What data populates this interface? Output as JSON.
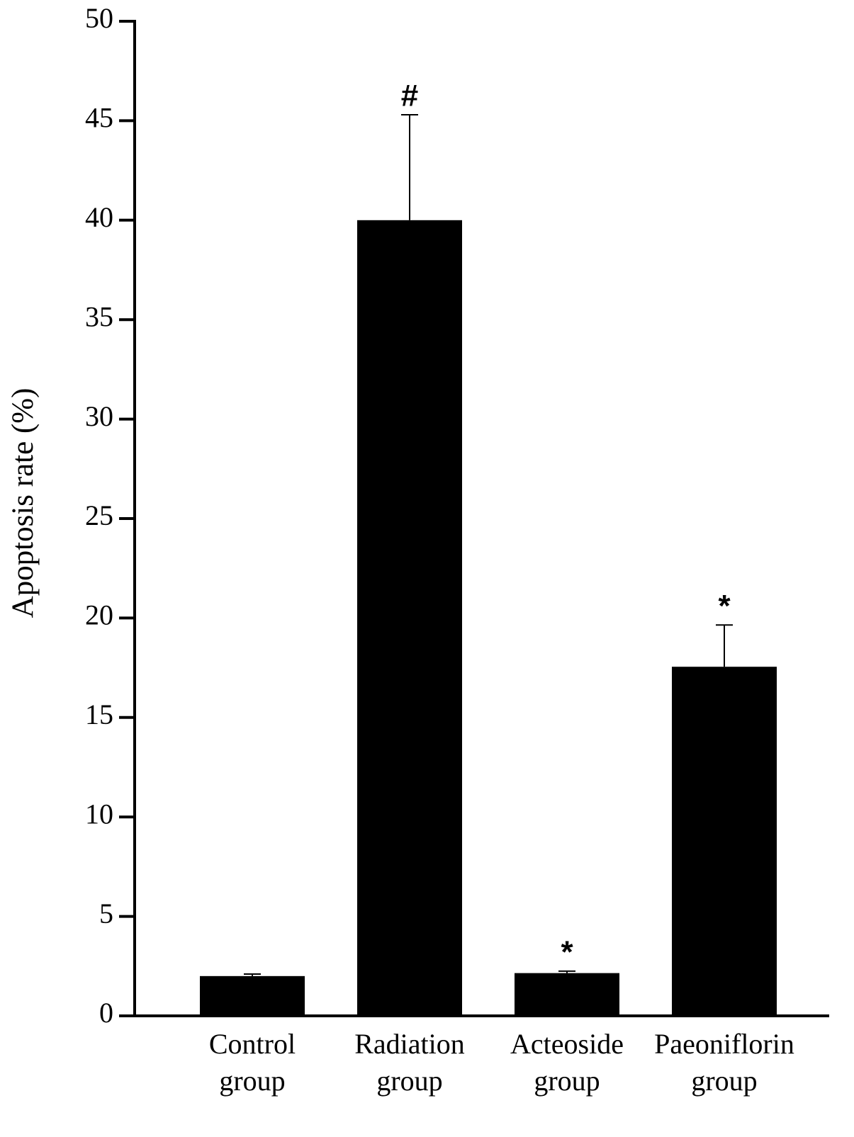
{
  "chart_data": {
    "type": "bar",
    "y_label": "Apoptosis rate (%)",
    "categories": [
      "Control group",
      "Radiation group",
      "Acteoside group",
      "Paeoniflorin group"
    ],
    "values": [
      2.0,
      40.0,
      2.15,
      17.55
    ],
    "errors": [
      0.1,
      5.3,
      0.1,
      2.1
    ],
    "annotations": [
      null,
      "#",
      "*",
      "*"
    ],
    "color": "#000000",
    "ylim": [
      0,
      50
    ],
    "yticks": [
      0,
      5,
      10,
      15,
      20,
      25,
      30,
      35,
      40,
      45,
      50
    ],
    "grid": false
  }
}
